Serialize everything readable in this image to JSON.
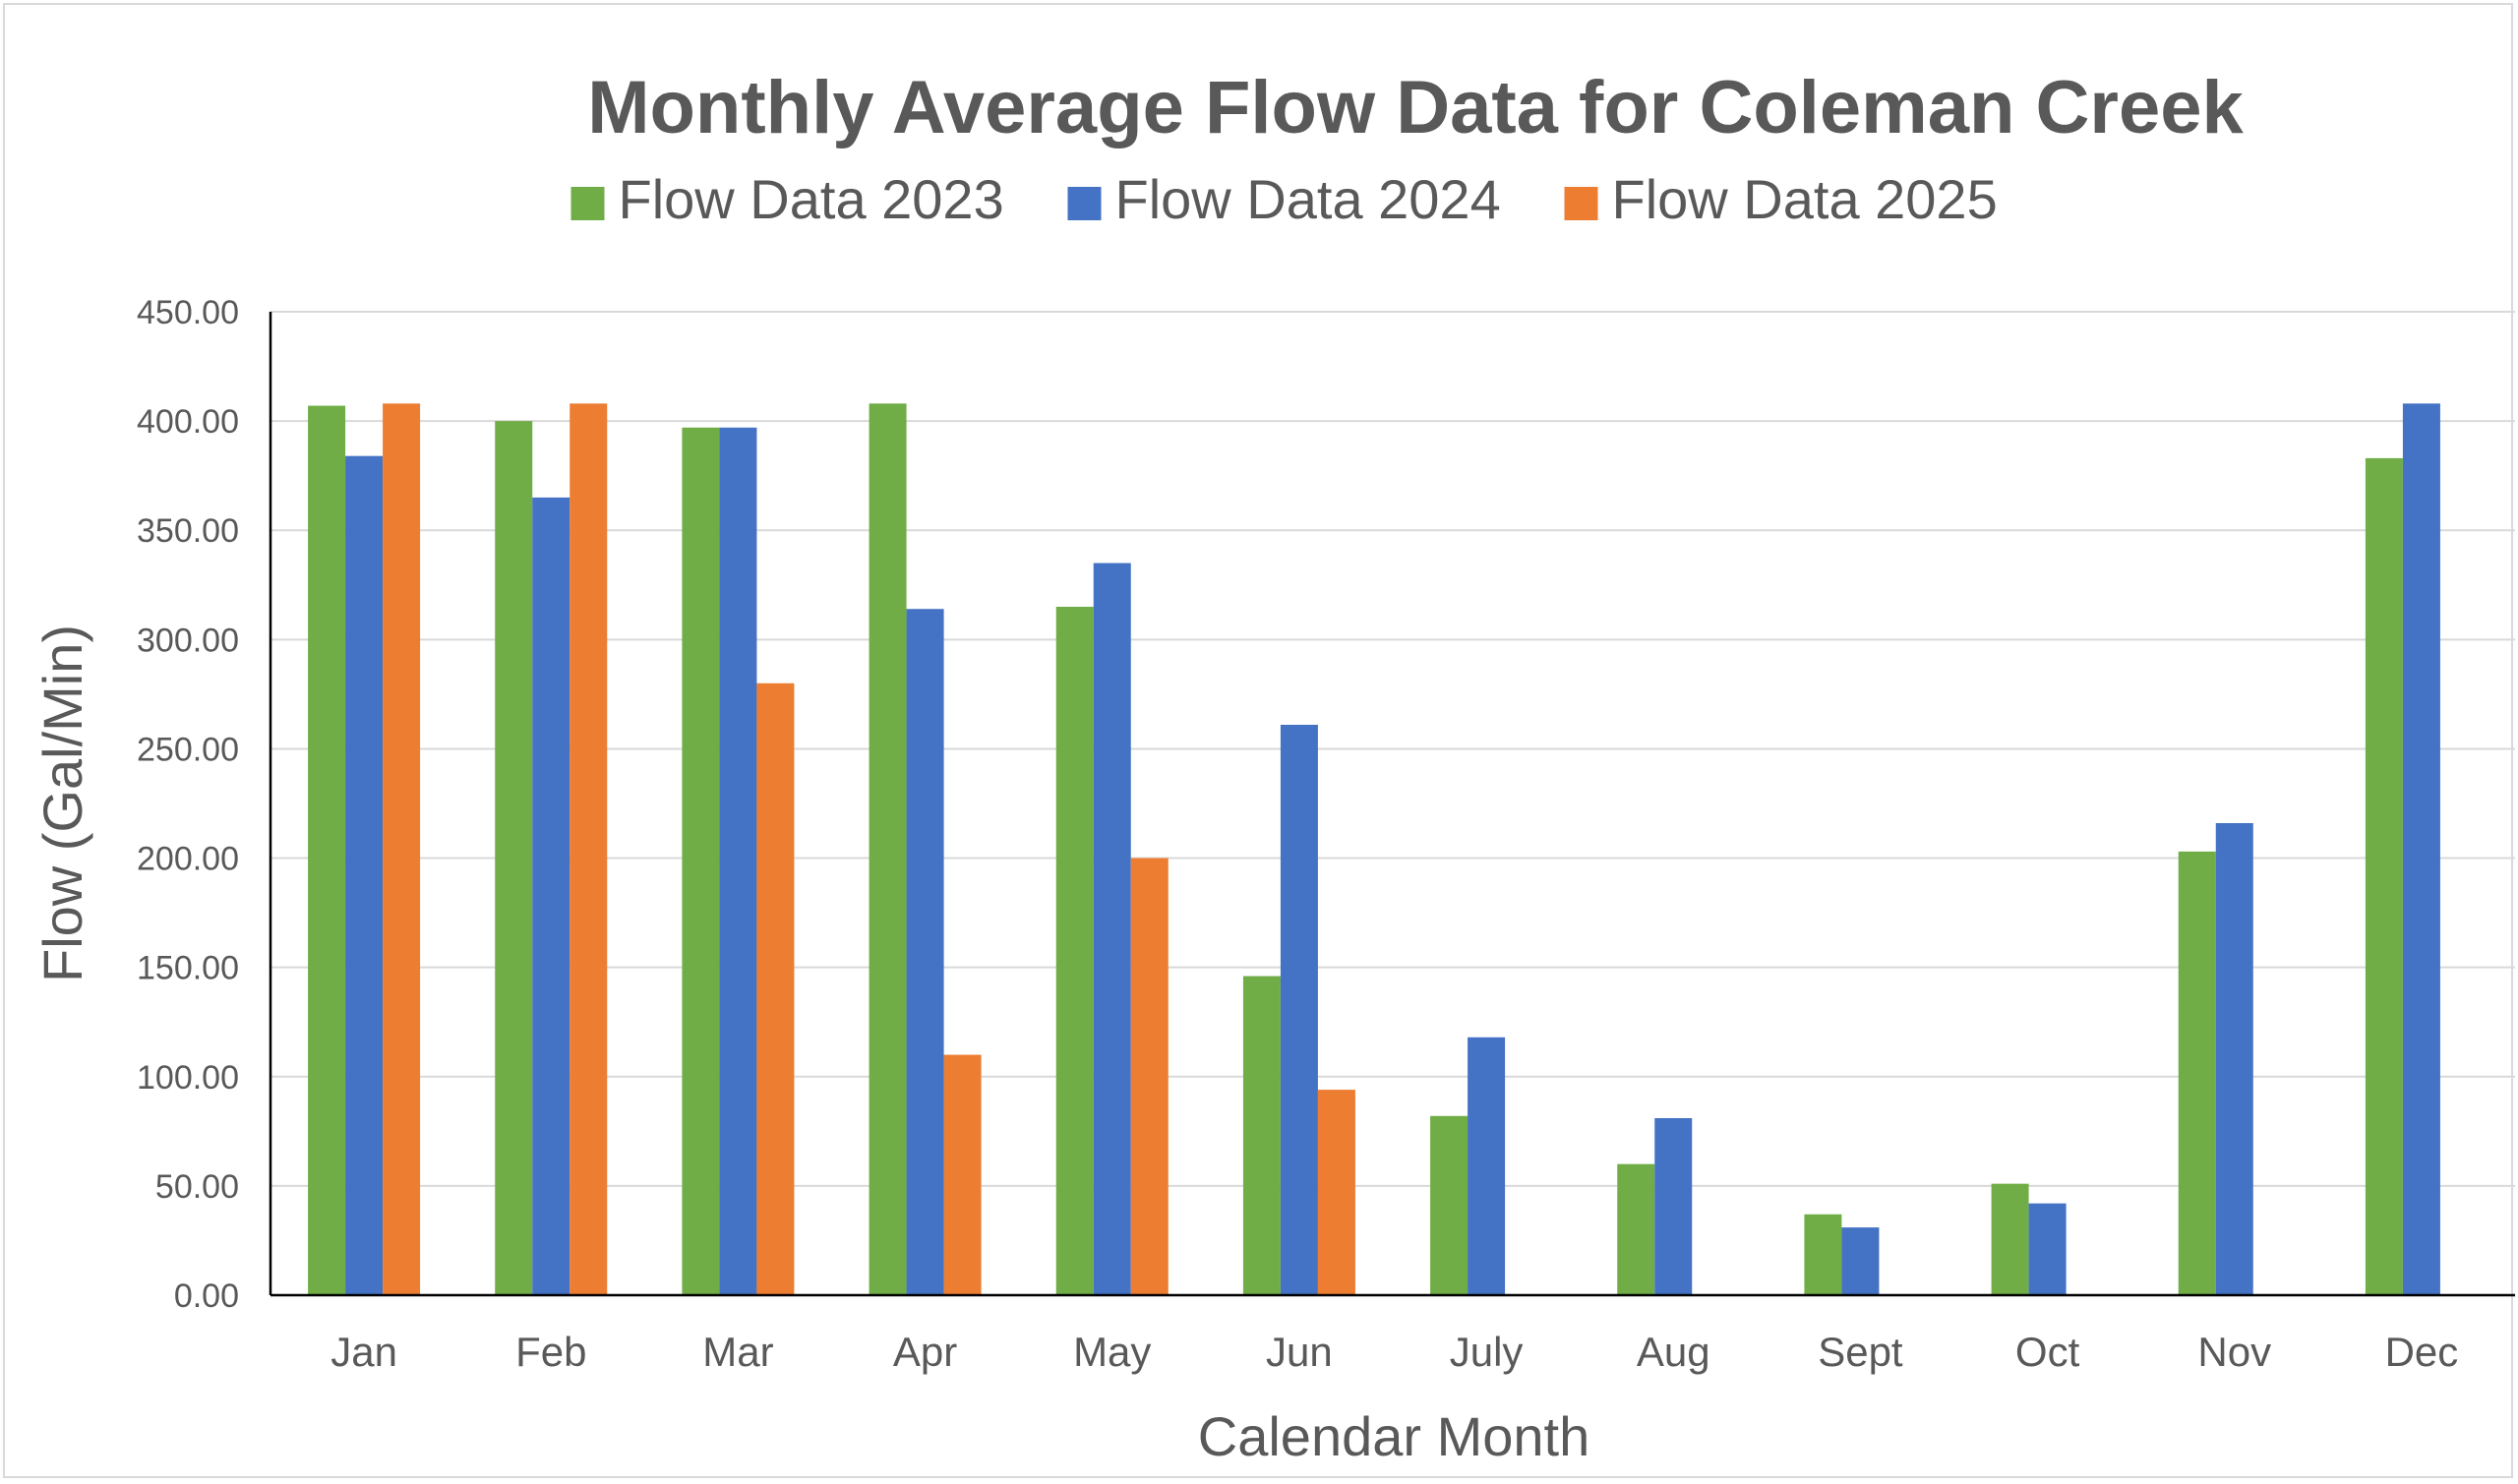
{
  "chart_data": {
    "type": "bar",
    "title": "Monthly Average Flow Data for Coleman Creek",
    "xlabel": "Calendar Month",
    "ylabel": "Flow (Gal/Min)",
    "ylim": [
      0,
      450
    ],
    "yticks": [
      "0.00",
      "50.00",
      "100.00",
      "150.00",
      "200.00",
      "250.00",
      "300.00",
      "350.00",
      "400.00",
      "450.00"
    ],
    "grid": true,
    "legend_position": "top",
    "categories": [
      "Jan",
      "Feb",
      "Mar",
      "Apr",
      "May",
      "Jun",
      "July",
      "Aug",
      "Sept",
      "Oct",
      "Nov",
      "Dec"
    ],
    "series": [
      {
        "name": "Flow Data 2023",
        "color": "#70ad47",
        "values": [
          407,
          400,
          397,
          408,
          315,
          146,
          82,
          60,
          37,
          51,
          203,
          383
        ]
      },
      {
        "name": "Flow Data 2024",
        "color": "#4472c4",
        "values": [
          384,
          365,
          397,
          314,
          335,
          261,
          118,
          81,
          31,
          42,
          216,
          408
        ]
      },
      {
        "name": "Flow Data 2025",
        "color": "#ed7d31",
        "values": [
          408,
          408,
          280,
          110,
          200,
          94,
          null,
          null,
          null,
          null,
          null,
          null
        ]
      }
    ]
  }
}
